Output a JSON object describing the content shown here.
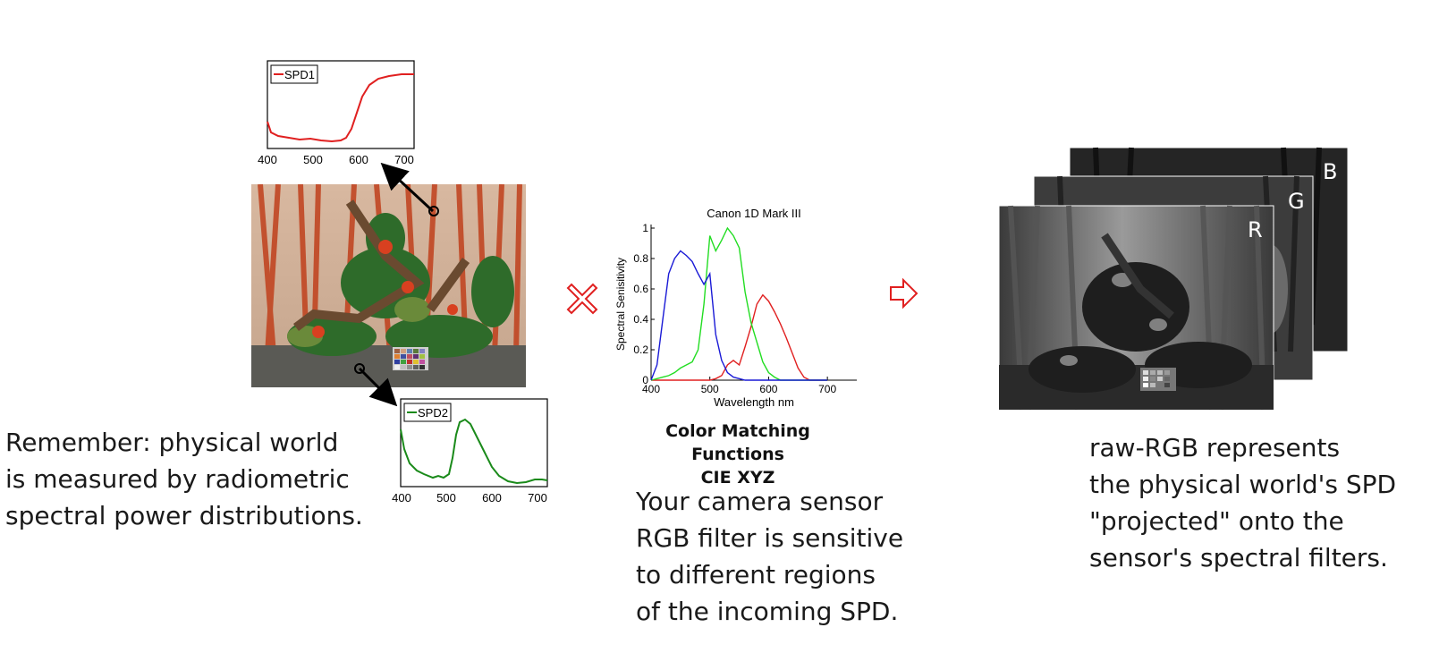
{
  "left_text": {
    "lines": [
      "Remember:  physical world",
      "is measured by  radiometric",
      "spectral power distributions."
    ]
  },
  "middle_text": {
    "lines": [
      "Your camera sensor",
      "RGB filter is sensitive",
      "to different regions",
      "of the incoming SPD."
    ]
  },
  "right_text": {
    "lines": [
      "raw-RGB represents",
      "the physical world's SPD",
      "\"projected\" onto the",
      "sensor's spectral filters."
    ]
  },
  "caption": {
    "line1": "Color Matching Functions",
    "line2": "CIE XYZ"
  },
  "layers": {
    "r": "R",
    "g": "G",
    "b": "B"
  },
  "operators": {
    "multiply": "multiply-icon",
    "result": "arrow-right-icon"
  },
  "colors": {
    "spd1": "#e02020",
    "spd2": "#1a8a1a",
    "red": "#e02020",
    "green": "#22dd22",
    "blue": "#1a1ad6",
    "operator": "#e02020"
  },
  "spd1_plot": {
    "legend": "SPD1",
    "x_ticks": [
      "400",
      "500",
      "600",
      "700"
    ]
  },
  "spd2_plot": {
    "legend": "SPD2",
    "x_ticks": [
      "400",
      "500",
      "600",
      "700"
    ]
  },
  "chart_data": {
    "type": "line",
    "title": "Canon 1D Mark III",
    "xlabel": "Wavelength nm",
    "ylabel": "Spectral Senisitivity",
    "xlim": [
      400,
      750
    ],
    "ylim": [
      0,
      1
    ],
    "x_ticks": [
      "400",
      "500",
      "600",
      "700"
    ],
    "y_ticks": [
      "0",
      "0.2",
      "0.4",
      "0.6",
      "0.8",
      "1"
    ],
    "x": [
      400,
      410,
      420,
      430,
      440,
      450,
      460,
      470,
      480,
      490,
      500,
      510,
      520,
      530,
      540,
      550,
      560,
      570,
      580,
      590,
      600,
      610,
      620,
      630,
      640,
      650,
      660,
      670,
      680,
      690,
      700
    ],
    "series": [
      {
        "color": "red",
        "values": [
          0,
          0,
          0,
          0,
          0,
          0,
          0,
          0,
          0,
          0,
          0,
          0.01,
          0.03,
          0.1,
          0.13,
          0.1,
          0.22,
          0.35,
          0.5,
          0.56,
          0.52,
          0.45,
          0.37,
          0.28,
          0.18,
          0.08,
          0.02,
          0,
          0,
          0,
          0
        ]
      },
      {
        "color": "green",
        "values": [
          0,
          0.01,
          0.02,
          0.03,
          0.05,
          0.08,
          0.1,
          0.12,
          0.2,
          0.5,
          0.95,
          0.85,
          0.92,
          1.0,
          0.95,
          0.87,
          0.58,
          0.38,
          0.25,
          0.12,
          0.05,
          0.02,
          0,
          0,
          0,
          0,
          0,
          0,
          0,
          0,
          0
        ]
      },
      {
        "color": "blue",
        "values": [
          0,
          0.1,
          0.4,
          0.7,
          0.8,
          0.85,
          0.82,
          0.78,
          0.7,
          0.63,
          0.7,
          0.3,
          0.13,
          0.05,
          0.02,
          0.01,
          0,
          0,
          0,
          0,
          0,
          0,
          0,
          0,
          0,
          0,
          0,
          0,
          0,
          0,
          0
        ]
      }
    ]
  }
}
